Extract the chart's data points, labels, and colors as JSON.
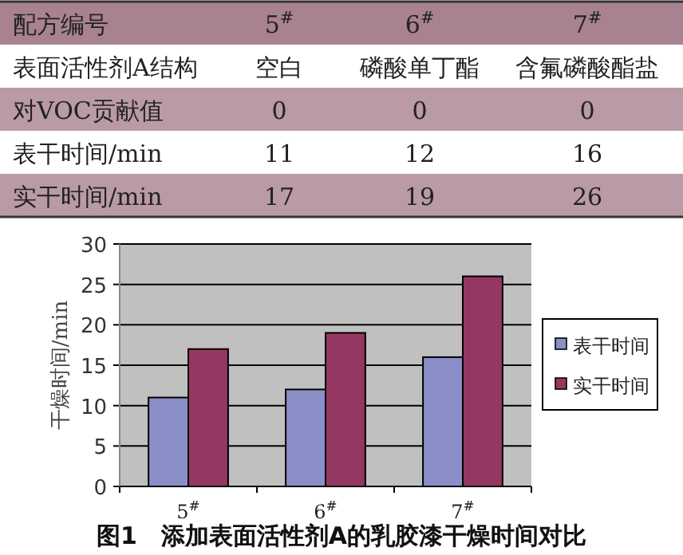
{
  "chart_data": {
    "type": "bar",
    "title": "图1　添加表面活性剂A的乳胶漆干燥时间对比",
    "ylabel": "干燥时间/min",
    "categories": [
      "5$^{#}$",
      "6$^{#}$",
      "7$^{#}$"
    ],
    "series": [
      {
        "name": "表干时间",
        "color": "#8b8fc8",
        "values": [
          11,
          12,
          16
        ]
      },
      {
        "name": "实干时间",
        "color": "#953763",
        "values": [
          17,
          19,
          26
        ]
      }
    ],
    "ylim": [
      0,
      30
    ],
    "yticks": [
      0,
      5,
      10,
      15,
      20,
      25,
      30
    ],
    "grid": "y",
    "legend": "right",
    "annotations": [
      "配方编号",
      "表面活性剂A结构",
      "空白",
      "磷酸单丁酯",
      "含氟磷酸酯盐",
      "对VOC贡献值",
      "0",
      "0",
      "0",
      "表干时间/min",
      "实干时间/min",
      "11",
      "12",
      "16",
      "17",
      "19",
      "26"
    ]
  }
}
